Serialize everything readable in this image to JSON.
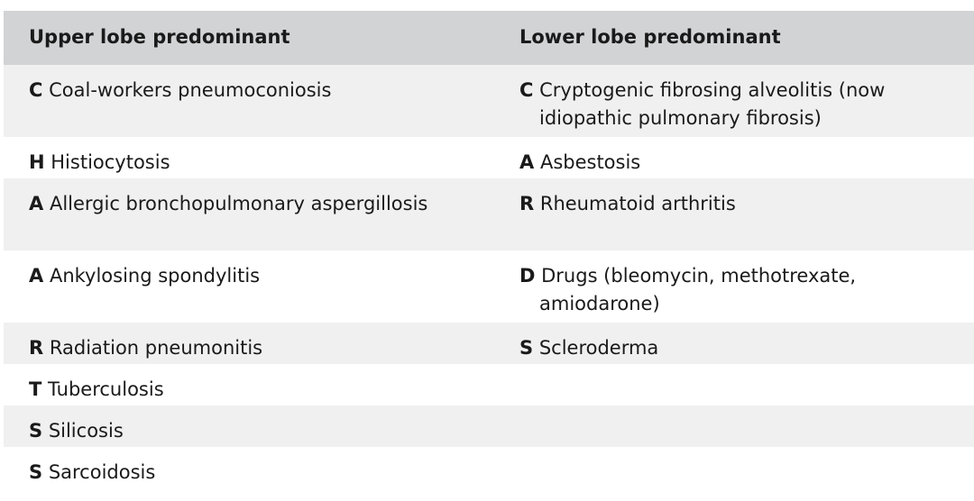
{
  "headers": [
    "Upper lobe predominant",
    "Lower lobe predominant"
  ],
  "rows": [
    {
      "upper": {
        "letter": "C",
        "text": "Coal-workers pneumoconiosis"
      },
      "lower": {
        "letter": "C",
        "text": "Cryptogenic fibrosing alveolitis (now idiopathic pulmonary fibrosis)"
      }
    },
    {
      "upper": {
        "letter": "H",
        "text": "Histiocytosis"
      },
      "lower": {
        "letter": "A",
        "text": "Asbestosis"
      }
    },
    {
      "upper": {
        "letter": "A",
        "text": "Allergic bronchopulmonary aspergillosis"
      },
      "lower": {
        "letter": "R",
        "text": "Rheumatoid arthritis"
      }
    },
    {
      "upper": {
        "letter": "A",
        "text": "Ankylosing spondylitis"
      },
      "lower": {
        "letter": "D",
        "text": "Drugs (bleomycin, methotrexate, amiodarone)"
      }
    },
    {
      "upper": {
        "letter": "R",
        "text": "Radiation pneumonitis"
      },
      "lower": {
        "letter": "S",
        "text": "Scleroderma"
      }
    },
    {
      "upper": {
        "letter": "T",
        "text": "Tuberculosis"
      },
      "lower": {
        "letter": "",
        "text": ""
      }
    },
    {
      "upper": {
        "letter": "S",
        "text": "Silicosis"
      },
      "lower": {
        "letter": "",
        "text": ""
      }
    },
    {
      "upper": {
        "letter": "S",
        "text": "Sarcoidosis"
      },
      "lower": {
        "letter": "",
        "text": ""
      }
    }
  ]
}
